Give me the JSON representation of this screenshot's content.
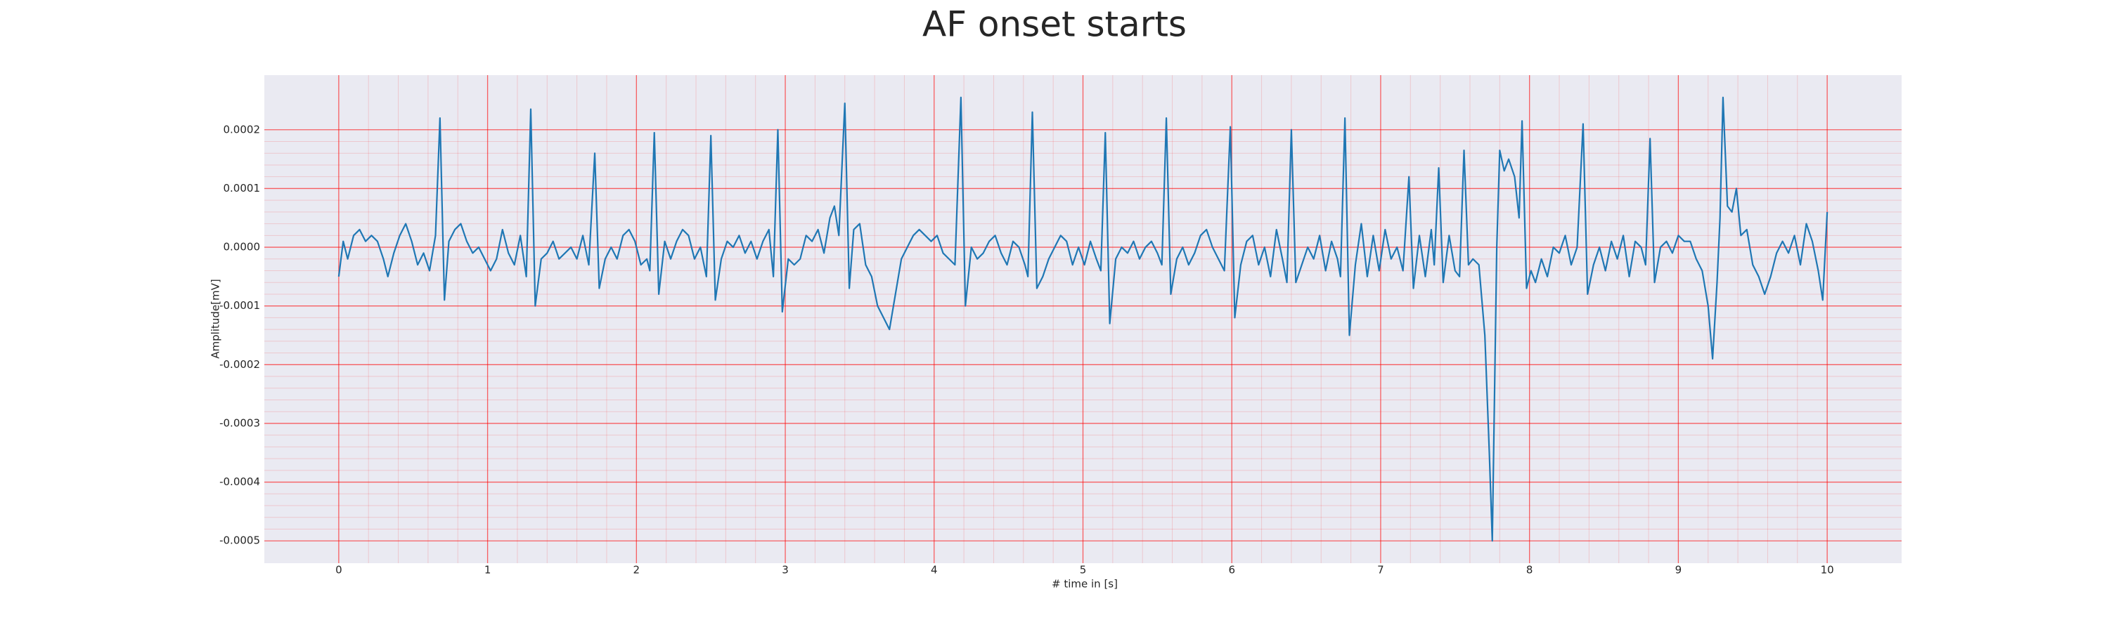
{
  "chart_data": {
    "type": "line",
    "title": "AF onset starts",
    "xlabel": "# time in [s]",
    "ylabel": "Amplitude[mV]",
    "xlim": [
      -0.5,
      10.5
    ],
    "ylim": [
      -0.000538,
      0.000293
    ],
    "xticks": [
      0,
      1,
      2,
      3,
      4,
      5,
      6,
      7,
      8,
      9,
      10
    ],
    "yticks": [
      -0.0005,
      -0.0004,
      -0.0003,
      -0.0002,
      -0.0001,
      {
        "value": 0,
        "label": "0.0000"
      },
      0.0001,
      0.0002
    ],
    "grid": true,
    "minor_grid": true,
    "background": "#eaeaf2",
    "grid_color": "#ff0000",
    "x": [
      0,
      0.03,
      0.06,
      0.1,
      0.14,
      0.18,
      0.22,
      0.26,
      0.3,
      0.33,
      0.37,
      0.41,
      0.45,
      0.49,
      0.53,
      0.57,
      0.61,
      0.65,
      0.68,
      0.71,
      0.74,
      0.78,
      0.82,
      0.86,
      0.9,
      0.94,
      0.98,
      1.02,
      1.06,
      1.1,
      1.14,
      1.18,
      1.22,
      1.26,
      1.29,
      1.32,
      1.36,
      1.4,
      1.44,
      1.48,
      1.52,
      1.56,
      1.6,
      1.64,
      1.68,
      1.72,
      1.75,
      1.79,
      1.83,
      1.87,
      1.91,
      1.95,
      1.99,
      2.03,
      2.07,
      2.09,
      2.12,
      2.15,
      2.19,
      2.23,
      2.27,
      2.31,
      2.35,
      2.39,
      2.43,
      2.47,
      2.5,
      2.53,
      2.57,
      2.61,
      2.65,
      2.69,
      2.73,
      2.77,
      2.81,
      2.85,
      2.89,
      2.92,
      2.95,
      2.98,
      3.02,
      3.06,
      3.1,
      3.14,
      3.18,
      3.22,
      3.26,
      3.3,
      3.33,
      3.36,
      3.4,
      3.43,
      3.46,
      3.5,
      3.54,
      3.58,
      3.62,
      3.66,
      3.7,
      3.74,
      3.78,
      3.82,
      3.86,
      3.9,
      3.94,
      3.98,
      4.02,
      4.06,
      4.1,
      4.14,
      4.18,
      4.21,
      4.25,
      4.29,
      4.33,
      4.37,
      4.41,
      4.45,
      4.49,
      4.53,
      4.57,
      4.61,
      4.63,
      4.66,
      4.69,
      4.73,
      4.77,
      4.81,
      4.85,
      4.89,
      4.93,
      4.97,
      5.01,
      5.05,
      5.09,
      5.12,
      5.15,
      5.18,
      5.22,
      5.26,
      5.3,
      5.34,
      5.38,
      5.42,
      5.46,
      5.5,
      5.53,
      5.56,
      5.59,
      5.63,
      5.67,
      5.71,
      5.75,
      5.79,
      5.83,
      5.87,
      5.91,
      5.95,
      5.99,
      6.02,
      6.06,
      6.1,
      6.14,
      6.18,
      6.22,
      6.26,
      6.3,
      6.34,
      6.37,
      6.4,
      6.43,
      6.47,
      6.51,
      6.55,
      6.59,
      6.63,
      6.67,
      6.71,
      6.73,
      6.76,
      6.79,
      6.83,
      6.87,
      6.91,
      6.95,
      6.99,
      7.03,
      7.07,
      7.11,
      7.15,
      7.19,
      7.22,
      7.26,
      7.3,
      7.34,
      7.36,
      7.39,
      7.42,
      7.46,
      7.5,
      7.53,
      7.56,
      7.59,
      7.62,
      7.66,
      7.7,
      7.73,
      7.75,
      7.78,
      7.8,
      7.83,
      7.86,
      7.9,
      7.93,
      7.95,
      7.98,
      8.01,
      8.04,
      8.08,
      8.12,
      8.16,
      8.2,
      8.24,
      8.28,
      8.32,
      8.36,
      8.39,
      8.43,
      8.47,
      8.51,
      8.55,
      8.59,
      8.63,
      8.67,
      8.71,
      8.75,
      8.78,
      8.81,
      8.84,
      8.88,
      8.92,
      8.96,
      9.0,
      9.04,
      9.08,
      9.12,
      9.16,
      9.2,
      9.23,
      9.26,
      9.28,
      9.3,
      9.33,
      9.36,
      9.39,
      9.42,
      9.46,
      9.5,
      9.54,
      9.58,
      9.62,
      9.66,
      9.7,
      9.74,
      9.78,
      9.82,
      9.86,
      9.9,
      9.94,
      9.97,
      10.0
    ],
    "series": [
      {
        "color": "#1f77b4",
        "values": [
          -5e-05,
          1e-05,
          -2e-05,
          2e-05,
          3e-05,
          1e-05,
          2e-05,
          1e-05,
          -2e-05,
          -5e-05,
          -1e-05,
          2e-05,
          4e-05,
          1e-05,
          -3e-05,
          -1e-05,
          -4e-05,
          2e-05,
          0.00022,
          -9e-05,
          1e-05,
          3e-05,
          4e-05,
          1e-05,
          -1e-05,
          0,
          -2e-05,
          -4e-05,
          -2e-05,
          3e-05,
          -1e-05,
          -3e-05,
          2e-05,
          -5e-05,
          0.000235,
          -0.0001,
          -2e-05,
          -1e-05,
          1e-05,
          -2e-05,
          -1e-05,
          0,
          -2e-05,
          2e-05,
          -3e-05,
          0.00016,
          -7e-05,
          -2e-05,
          0,
          -2e-05,
          2e-05,
          3e-05,
          1e-05,
          -3e-05,
          -2e-05,
          -4e-05,
          0.000195,
          -8e-05,
          1e-05,
          -2e-05,
          1e-05,
          3e-05,
          2e-05,
          -2e-05,
          0,
          -5e-05,
          0.00019,
          -9e-05,
          -2e-05,
          1e-05,
          0,
          2e-05,
          -1e-05,
          1e-05,
          -2e-05,
          1e-05,
          3e-05,
          -5e-05,
          0.0002,
          -0.00011,
          -2e-05,
          -3e-05,
          -2e-05,
          2e-05,
          1e-05,
          3e-05,
          -1e-05,
          5e-05,
          7e-05,
          2e-05,
          0.000245,
          -7e-05,
          3e-05,
          4e-05,
          -3e-05,
          -5e-05,
          -0.0001,
          -0.00012,
          -0.00014,
          -8e-05,
          -2e-05,
          0,
          2e-05,
          3e-05,
          2e-05,
          1e-05,
          2e-05,
          -1e-05,
          -2e-05,
          -3e-05,
          0.000255,
          -0.0001,
          0,
          -2e-05,
          -1e-05,
          1e-05,
          2e-05,
          -1e-05,
          -3e-05,
          1e-05,
          0,
          -3e-05,
          -5e-05,
          0.00023,
          -7e-05,
          -5e-05,
          -2e-05,
          0,
          2e-05,
          1e-05,
          -3e-05,
          0,
          -3e-05,
          1e-05,
          -2e-05,
          -4e-05,
          0.000195,
          -0.00013,
          -2e-05,
          0,
          -1e-05,
          1e-05,
          -2e-05,
          0,
          1e-05,
          -1e-05,
          -3e-05,
          0.00022,
          -8e-05,
          -2e-05,
          0,
          -3e-05,
          -1e-05,
          2e-05,
          3e-05,
          0,
          -2e-05,
          -4e-05,
          0.000205,
          -0.00012,
          -3e-05,
          1e-05,
          2e-05,
          -3e-05,
          0,
          -5e-05,
          3e-05,
          -2e-05,
          -6e-05,
          0.0002,
          -6e-05,
          -3e-05,
          0,
          -2e-05,
          2e-05,
          -4e-05,
          1e-05,
          -2e-05,
          -5e-05,
          0.00022,
          -0.00015,
          -3e-05,
          4e-05,
          -5e-05,
          2e-05,
          -4e-05,
          3e-05,
          -2e-05,
          0,
          -4e-05,
          0.00012,
          -7e-05,
          2e-05,
          -5e-05,
          3e-05,
          -3e-05,
          0.000135,
          -6e-05,
          2e-05,
          -4e-05,
          -5e-05,
          0.000165,
          -3e-05,
          -2e-05,
          -3e-05,
          -0.00015,
          -0.00035,
          -0.0005,
          0,
          0.000165,
          0.00013,
          0.00015,
          0.00012,
          5e-05,
          0.000215,
          -7e-05,
          -4e-05,
          -6e-05,
          -2e-05,
          -5e-05,
          0,
          -1e-05,
          2e-05,
          -3e-05,
          0,
          0.00021,
          -8e-05,
          -3e-05,
          0,
          -4e-05,
          1e-05,
          -2e-05,
          2e-05,
          -5e-05,
          1e-05,
          0,
          -3e-05,
          0.000185,
          -6e-05,
          0,
          1e-05,
          -1e-05,
          2e-05,
          1e-05,
          1e-05,
          -2e-05,
          -4e-05,
          -0.0001,
          -0.00019,
          -6e-05,
          5e-05,
          0.000255,
          7e-05,
          6e-05,
          0.0001,
          2e-05,
          3e-05,
          -3e-05,
          -5e-05,
          -8e-05,
          -5e-05,
          -1e-05,
          1e-05,
          -1e-05,
          2e-05,
          -3e-05,
          4e-05,
          1e-05,
          -4e-05,
          -9e-05,
          6e-05
        ]
      }
    ]
  }
}
